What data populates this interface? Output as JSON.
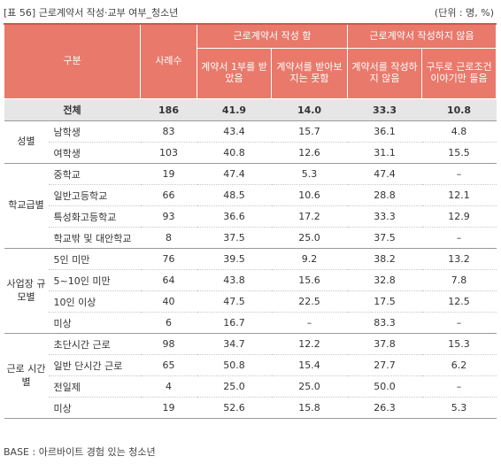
{
  "caption": "[표 56] 근로계약서 작성·교부 여부_청소년",
  "unit": "(단위 : 명, %)",
  "note": "BASE : 아르바이트 경험 있는 청소년",
  "header": {
    "category": "구분",
    "count": "사례수",
    "group_written": "근로계약서 작성 함",
    "group_not_written": "근로계약서 작성하지 않음",
    "col1": "계약서 1부를 받았음",
    "col2": "계약서를 받아보지는 못함",
    "col3": "계약서를 작성하지 않음",
    "col4": "구두로 근로조건 이야기만 들음"
  },
  "total": {
    "label": "전체",
    "n": "186",
    "v": [
      "41.9",
      "14.0",
      "33.3",
      "10.8"
    ]
  },
  "groups": [
    {
      "label": "성별",
      "rows": [
        {
          "label": "남학생",
          "n": "83",
          "v": [
            "43.4",
            "15.7",
            "36.1",
            "4.8"
          ]
        },
        {
          "label": "여학생",
          "n": "103",
          "v": [
            "40.8",
            "12.6",
            "31.1",
            "15.5"
          ]
        }
      ]
    },
    {
      "label": "학교급별",
      "rows": [
        {
          "label": "중학교",
          "n": "19",
          "v": [
            "47.4",
            "5.3",
            "47.4",
            "–"
          ]
        },
        {
          "label": "일반고등학교",
          "n": "66",
          "v": [
            "48.5",
            "10.6",
            "28.8",
            "12.1"
          ]
        },
        {
          "label": "특성화고등학교",
          "n": "93",
          "v": [
            "36.6",
            "17.2",
            "33.3",
            "12.9"
          ]
        },
        {
          "label": "학교밖 및 대안학교",
          "n": "8",
          "v": [
            "37.5",
            "25.0",
            "37.5",
            "–"
          ]
        }
      ]
    },
    {
      "label": "사업장 규모별",
      "rows": [
        {
          "label": "5인 미만",
          "n": "76",
          "v": [
            "39.5",
            "9.2",
            "38.2",
            "13.2"
          ]
        },
        {
          "label": "5~10인 미만",
          "n": "64",
          "v": [
            "43.8",
            "15.6",
            "32.8",
            "7.8"
          ]
        },
        {
          "label": "10인 이상",
          "n": "40",
          "v": [
            "47.5",
            "22.5",
            "17.5",
            "12.5"
          ]
        },
        {
          "label": "미상",
          "n": "6",
          "v": [
            "16.7",
            "–",
            "83.3",
            "–"
          ]
        }
      ]
    },
    {
      "label": "근로 시간별",
      "rows": [
        {
          "label": "초단시간 근로",
          "n": "98",
          "v": [
            "34.7",
            "12.2",
            "37.8",
            "15.3"
          ]
        },
        {
          "label": "일반 단시간 근로",
          "n": "65",
          "v": [
            "50.8",
            "15.4",
            "27.7",
            "6.2"
          ]
        },
        {
          "label": "전일제",
          "n": "4",
          "v": [
            "25.0",
            "25.0",
            "50.0",
            "–"
          ]
        },
        {
          "label": "미상",
          "n": "19",
          "v": [
            "52.6",
            "15.8",
            "26.3",
            "5.3"
          ]
        }
      ]
    }
  ]
}
